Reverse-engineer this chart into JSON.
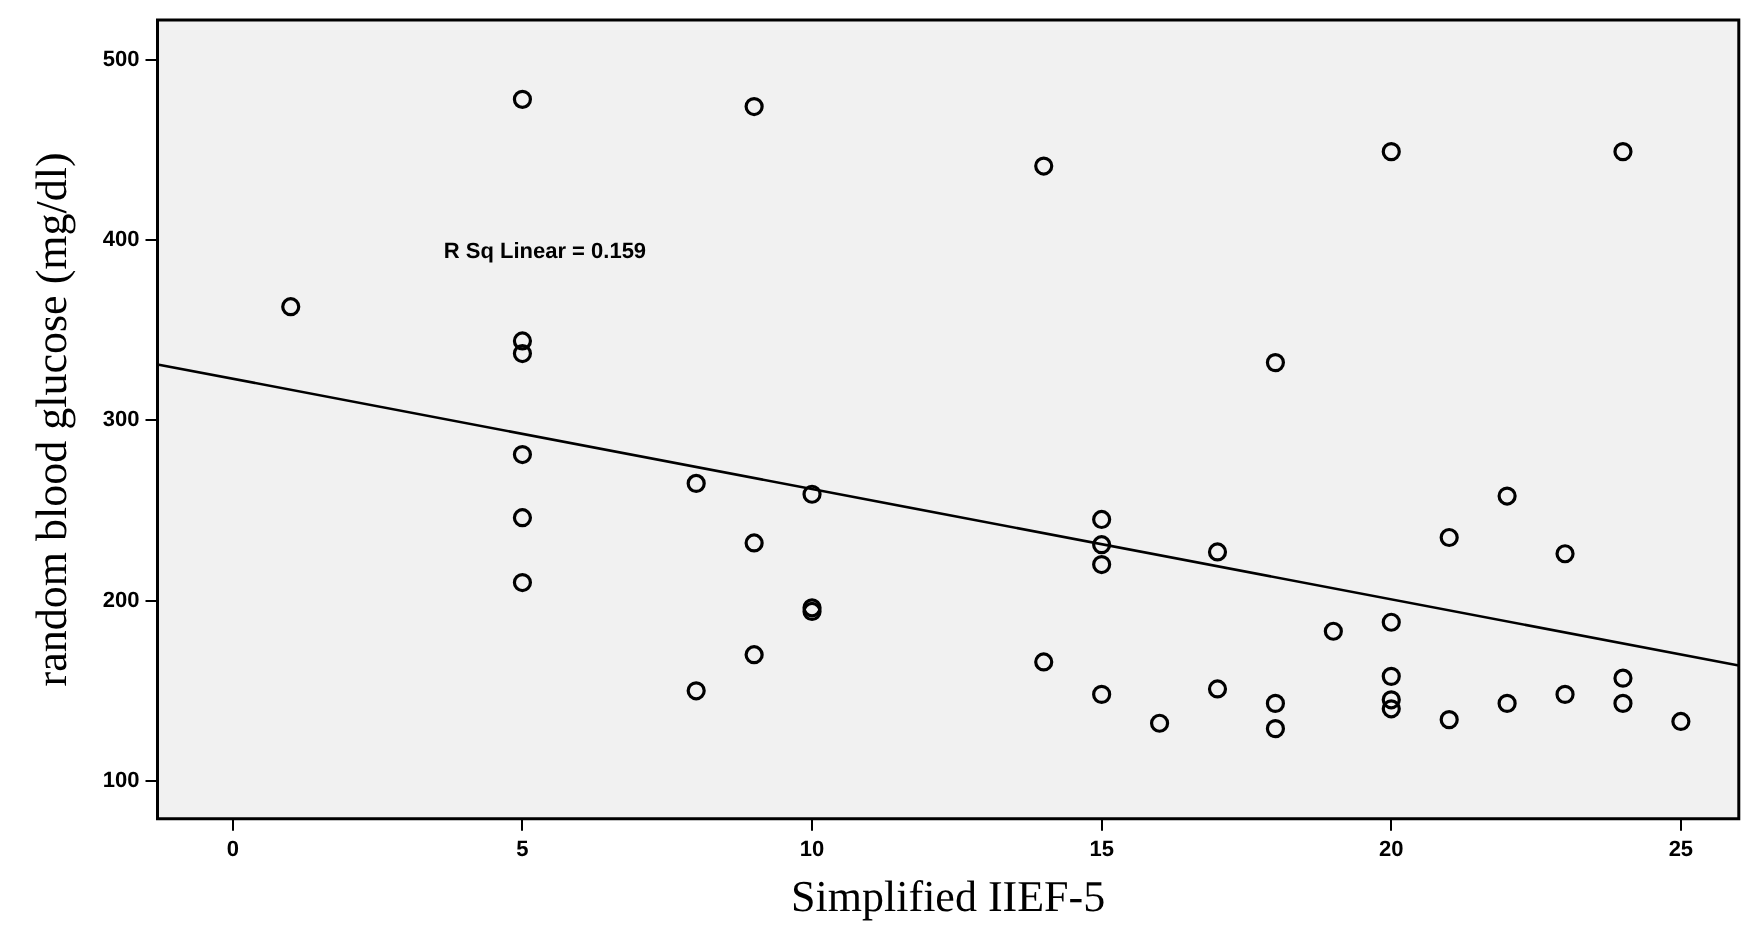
{
  "chart_data": {
    "type": "scatter",
    "xlabel": "Simplified IIEF-5",
    "ylabel": "random blood glucose (mg/dl)",
    "xlim": [
      -1.3,
      26
    ],
    "ylim": [
      79,
      522
    ],
    "xticks": [
      0,
      5,
      10,
      15,
      20,
      25
    ],
    "yticks": [
      100,
      200,
      300,
      400,
      500
    ],
    "grid": false,
    "legend": false,
    "marker": "circle",
    "annotations": [
      "R Sq Linear = 0.159"
    ],
    "series": [
      {
        "color": "#000000",
        "x": [
          5,
          9,
          1,
          5,
          5,
          5,
          8,
          10,
          5,
          9,
          5,
          10,
          10,
          9,
          8,
          14,
          20,
          24,
          18,
          22,
          15,
          21,
          15,
          17,
          23,
          15,
          19,
          20,
          14,
          20,
          24,
          15,
          23,
          17,
          18,
          18,
          20,
          20,
          22,
          24,
          16,
          21,
          25
        ],
        "values": [
          478,
          474,
          363,
          344,
          337,
          281,
          265,
          259,
          246,
          232,
          210,
          196,
          194,
          170,
          150,
          441,
          449,
          449,
          332,
          258,
          245,
          235,
          231,
          227,
          226,
          220,
          183,
          188,
          166,
          158,
          157,
          148,
          148,
          151,
          143,
          129,
          145,
          140,
          143,
          143,
          132,
          134,
          133
        ]
      },
      {
        "type": "line",
        "color": "#000000",
        "marker": "none",
        "line_style": "solid",
        "x": [
          -1.3,
          26
        ],
        "values": [
          331,
          164
        ]
      }
    ]
  }
}
